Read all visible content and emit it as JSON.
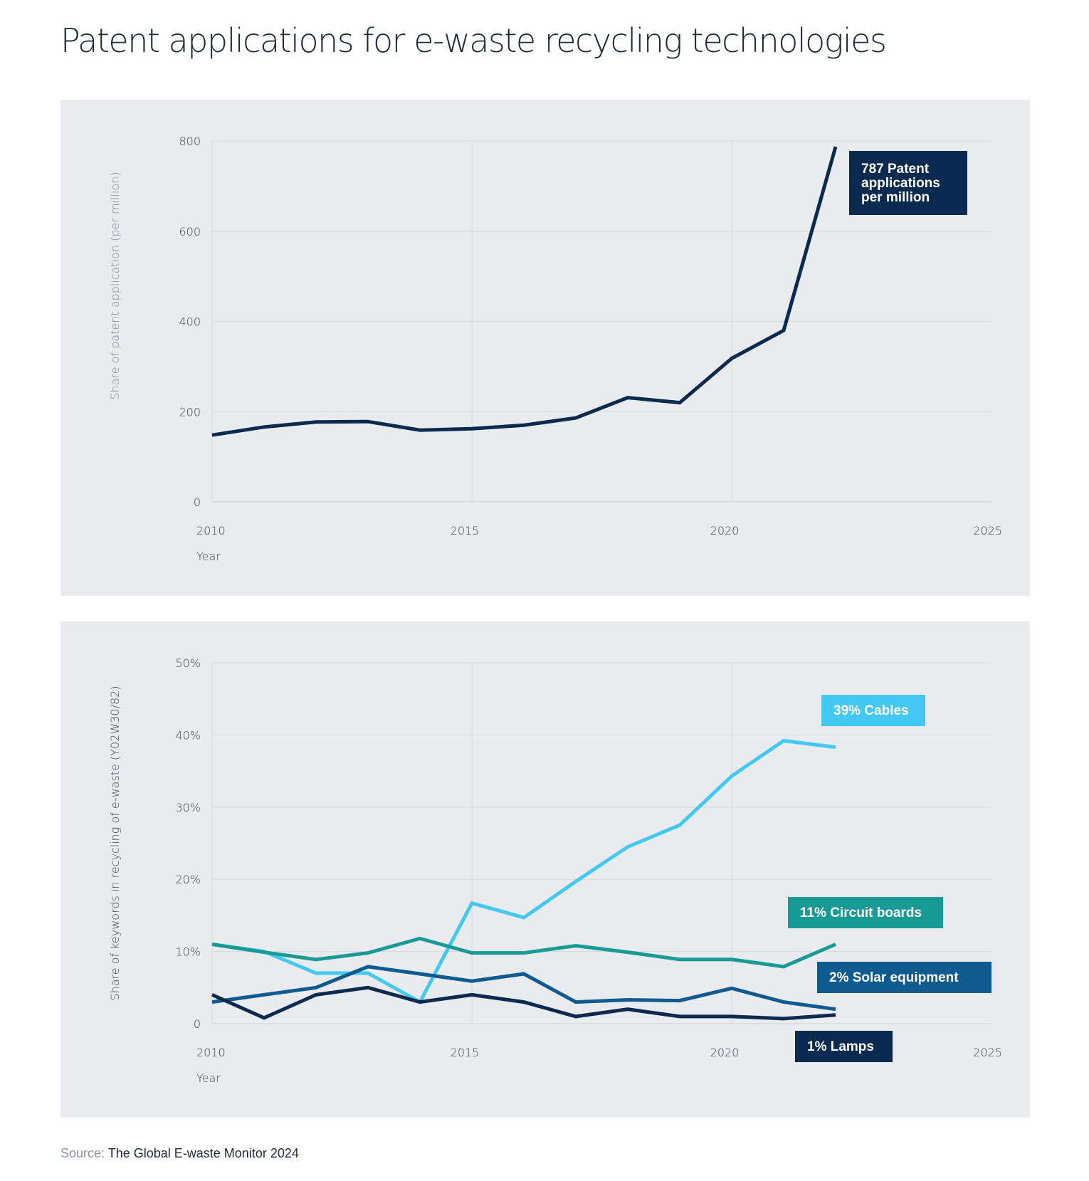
{
  "page": {
    "title": "Patent applications for e-waste recycling technologies",
    "source_label": "Source:",
    "source_text": "The Global E-waste Monitor 2024"
  },
  "chart_data": [
    {
      "type": "line",
      "xlabel": "Year",
      "ylabel": "Share of patent application (per million)",
      "xlim": [
        2010,
        2025
      ],
      "ylim": [
        0,
        800
      ],
      "x_ticks": [
        2010,
        2015,
        2020,
        2025
      ],
      "y_ticks": [
        0,
        200,
        400,
        600,
        800
      ],
      "y_tick_labels": [
        "0",
        "200",
        "400",
        "600",
        "800"
      ],
      "grid": true,
      "series": [
        {
          "color": "#0b2a4f",
          "x": [
            2010,
            2011,
            2012,
            2013,
            2014,
            2015,
            2016,
            2017,
            2018,
            2019,
            2020,
            2021,
            2022
          ],
          "values": [
            148,
            166,
            177,
            178,
            159,
            162,
            170,
            186,
            231,
            220,
            318,
            380,
            787
          ]
        }
      ],
      "annotations": [
        {
          "text": "787 Patent applications per million",
          "lines": [
            "787 Patent",
            "applications",
            "per million"
          ],
          "color": "#0b2a4f",
          "text_color": "#ffffff"
        }
      ]
    },
    {
      "type": "line",
      "xlabel": "Year",
      "ylabel": "Share of keywords in recycling of e-waste (Y02W30/82)",
      "xlim": [
        2010,
        2025
      ],
      "ylim": [
        0,
        50
      ],
      "x_ticks": [
        2010,
        2015,
        2020,
        2025
      ],
      "y_ticks": [
        0,
        10,
        20,
        30,
        40,
        50
      ],
      "y_tick_labels": [
        "0",
        "10%",
        "20%",
        "30%",
        "40%",
        "50%"
      ],
      "grid": true,
      "series": [
        {
          "color": "#43c8f2",
          "x": [
            2010,
            2011,
            2012,
            2013,
            2014,
            2015,
            2016,
            2017,
            2018,
            2019,
            2020,
            2021,
            2022
          ],
          "values": [
            11,
            10,
            7,
            7,
            3,
            16.7,
            14.7,
            19.7,
            24.5,
            27.5,
            34.3,
            39.2,
            38.3
          ]
        },
        {
          "color": "#1a9a96",
          "x": [
            2010,
            2011,
            2012,
            2013,
            2014,
            2015,
            2016,
            2017,
            2018,
            2019,
            2020,
            2021,
            2022
          ],
          "values": [
            11,
            9.9,
            8.9,
            9.8,
            11.8,
            9.8,
            9.8,
            10.8,
            9.9,
            8.9,
            8.9,
            7.9,
            11
          ]
        },
        {
          "color": "#0f5a8e",
          "x": [
            2010,
            2011,
            2012,
            2013,
            2014,
            2015,
            2016,
            2017,
            2018,
            2019,
            2020,
            2021,
            2022
          ],
          "values": [
            3,
            4,
            5,
            7.9,
            6.9,
            5.9,
            6.9,
            3,
            3.3,
            3.2,
            4.9,
            3,
            2
          ]
        },
        {
          "color": "#0b2a4f",
          "x": [
            2010,
            2011,
            2012,
            2013,
            2014,
            2015,
            2016,
            2017,
            2018,
            2019,
            2020,
            2021,
            2022
          ],
          "values": [
            4,
            0.8,
            4,
            5,
            3,
            4,
            3,
            1,
            2,
            1,
            1,
            0.7,
            1.2
          ]
        }
      ],
      "annotations": [
        {
          "text": "39% Cables",
          "color": "#43c8f2",
          "text_color": "#ffffff"
        },
        {
          "text": "11% Circuit boards",
          "color": "#1a9a96",
          "text_color": "#ffffff"
        },
        {
          "text": "2% Solar equipment",
          "color": "#0f5a8e",
          "text_color": "#ffffff"
        },
        {
          "text": "1% Lamps",
          "color": "#0b2a4f",
          "text_color": "#ffffff"
        }
      ]
    }
  ]
}
